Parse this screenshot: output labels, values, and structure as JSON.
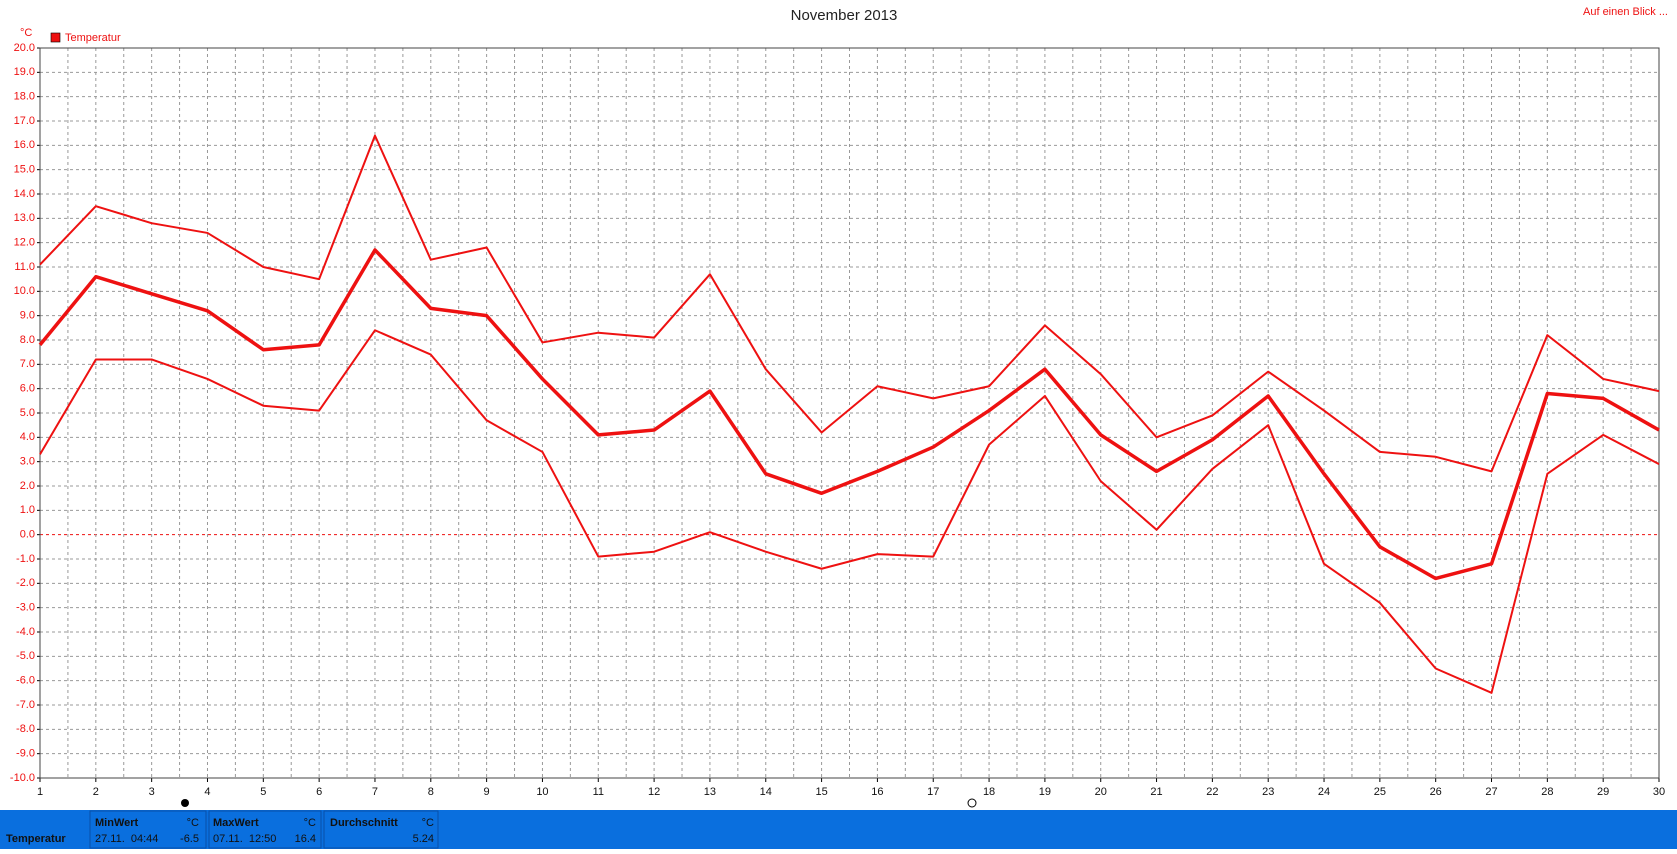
{
  "header": {
    "title": "November 2013",
    "link": "Auf einen Blick ..."
  },
  "chart_data": {
    "type": "line",
    "unit": "°C",
    "legend": "Temperatur",
    "color": "#ee1111",
    "x": [
      1,
      2,
      3,
      4,
      5,
      6,
      7,
      8,
      9,
      10,
      11,
      12,
      13,
      14,
      15,
      16,
      17,
      18,
      19,
      20,
      21,
      22,
      23,
      24,
      25,
      26,
      27,
      28,
      29,
      30
    ],
    "xlim": [
      1,
      30
    ],
    "xticks": [
      1,
      2,
      3,
      4,
      5,
      6,
      7,
      8,
      9,
      10,
      11,
      12,
      13,
      14,
      15,
      16,
      17,
      18,
      19,
      20,
      21,
      22,
      23,
      24,
      25,
      26,
      27,
      28,
      29,
      30
    ],
    "series": [
      {
        "color": "#ee1111",
        "width": 2,
        "values": [
          11.1,
          13.5,
          12.8,
          12.4,
          11.0,
          10.5,
          16.4,
          11.3,
          11.8,
          7.9,
          8.3,
          8.1,
          10.7,
          6.8,
          4.2,
          6.1,
          5.6,
          6.1,
          8.6,
          6.6,
          4.0,
          4.9,
          6.7,
          5.1,
          3.4,
          3.2,
          2.6,
          8.2,
          6.4,
          5.9
        ]
      },
      {
        "color": "#ee1111",
        "width": 3.5,
        "values": [
          7.8,
          10.6,
          9.9,
          9.2,
          7.6,
          7.8,
          11.7,
          9.3,
          9.0,
          6.4,
          4.1,
          4.3,
          5.9,
          2.5,
          1.7,
          2.6,
          3.6,
          5.1,
          6.8,
          4.1,
          2.6,
          3.9,
          5.7,
          2.5,
          -0.5,
          -1.8,
          -1.2,
          5.8,
          5.6,
          4.3
        ]
      },
      {
        "color": "#ee1111",
        "width": 2,
        "values": [
          3.3,
          7.2,
          7.2,
          6.4,
          5.3,
          5.1,
          8.4,
          7.4,
          4.7,
          3.4,
          -0.9,
          -0.7,
          0.1,
          -0.7,
          -1.4,
          -0.8,
          -0.9,
          3.7,
          5.7,
          2.2,
          0.2,
          2.7,
          4.5,
          -1.2,
          -2.8,
          -5.5,
          -6.5,
          2.5,
          4.1,
          2.9
        ]
      }
    ],
    "ylim": [
      -10,
      20
    ],
    "yticks": [
      {
        "value": -10,
        "label": "-10.0"
      },
      {
        "value": -9,
        "label": "-9.0"
      },
      {
        "value": -8,
        "label": "-8.0"
      },
      {
        "value": -7,
        "label": "-7.0"
      },
      {
        "value": -6,
        "label": "-6.0"
      },
      {
        "value": -5,
        "label": "-5.0"
      },
      {
        "value": -4,
        "label": "-4.0"
      },
      {
        "value": -3,
        "label": "-3.0"
      },
      {
        "value": -2,
        "label": "-2.0"
      },
      {
        "value": -1,
        "label": "-1.0"
      },
      {
        "value": 0,
        "label": "0.0"
      },
      {
        "value": 1,
        "label": "1.0"
      },
      {
        "value": 2,
        "label": "2.0"
      },
      {
        "value": 3,
        "label": "3.0"
      },
      {
        "value": 4,
        "label": "4.0"
      },
      {
        "value": 5,
        "label": "5.0"
      },
      {
        "value": 6,
        "label": "6.0"
      },
      {
        "value": 7,
        "label": "7.0"
      },
      {
        "value": 8,
        "label": "8.0"
      },
      {
        "value": 9,
        "label": "9.0"
      },
      {
        "value": 10,
        "label": "10.0"
      },
      {
        "value": 11,
        "label": "11.0"
      },
      {
        "value": 12,
        "label": "12.0"
      },
      {
        "value": 13,
        "label": "13.0"
      },
      {
        "value": 14,
        "label": "14.0"
      },
      {
        "value": 15,
        "label": "15.0"
      },
      {
        "value": 16,
        "label": "16.0"
      },
      {
        "value": 17,
        "label": "17.0"
      },
      {
        "value": 18,
        "label": "18.0"
      },
      {
        "value": 19,
        "label": "19.0"
      },
      {
        "value": 20,
        "label": "20.0"
      }
    ],
    "grid": true
  },
  "summary": {
    "label": "Temperatur",
    "min": {
      "title": "MinWert",
      "unit": "°C",
      "time": "27.11.  04:44",
      "value": "-6.5"
    },
    "max": {
      "title": "MaxWert",
      "unit": "°C",
      "time": "07.11.  12:50",
      "value": "16.4"
    },
    "avg": {
      "title": "Durchschnitt",
      "unit": "°C",
      "value": "5.24"
    }
  }
}
